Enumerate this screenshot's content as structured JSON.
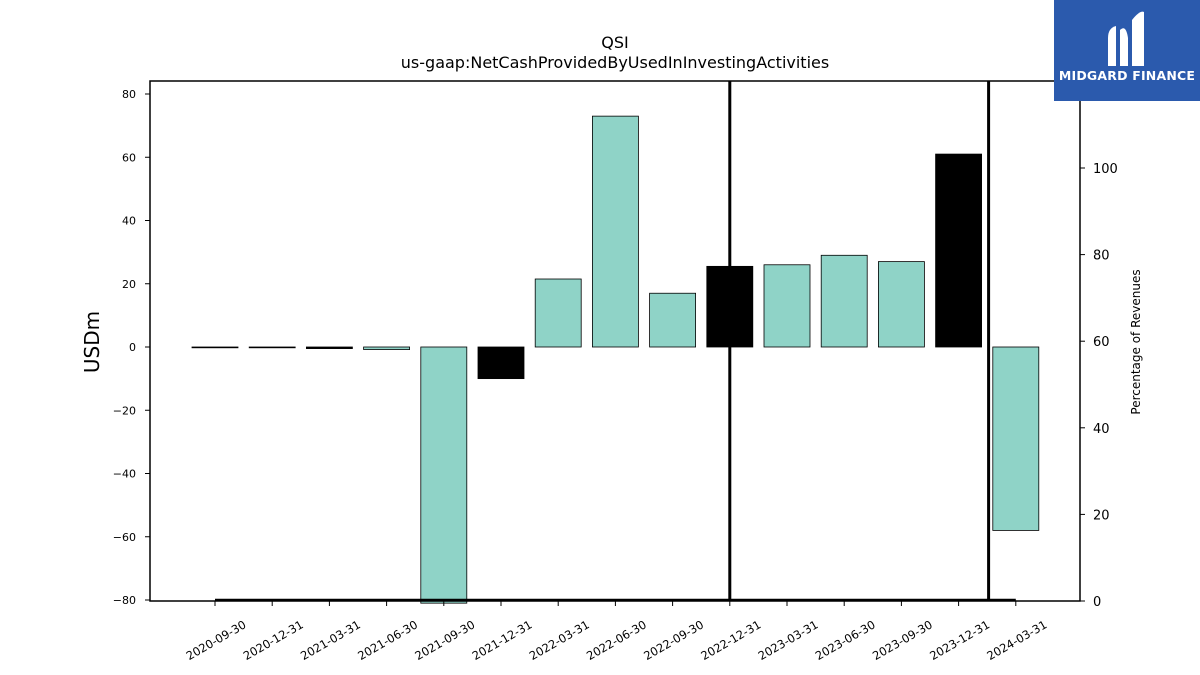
{
  "chart_data": {
    "type": "bar",
    "title": "QSI",
    "subtitle": "us-gaap:NetCashProvidedByUsedInInvestingActivities",
    "ylabel": "USDm",
    "y2label": "Percentage of Revenues",
    "categories": [
      "2020-09-30",
      "2020-12-31",
      "2021-03-31",
      "2021-06-30",
      "2021-09-30",
      "2021-12-31",
      "2022-03-31",
      "2022-06-30",
      "2022-09-30",
      "2022-12-31",
      "2023-03-31",
      "2023-06-30",
      "2023-09-30",
      "2023-12-31",
      "2024-03-31"
    ],
    "values": [
      -0.1,
      -0.2,
      -0.5,
      -0.8,
      -81,
      -10,
      21.5,
      73,
      17,
      25.5,
      26,
      29,
      27,
      61,
      -58
    ],
    "highlight": [
      false,
      false,
      true,
      false,
      false,
      true,
      false,
      false,
      false,
      true,
      false,
      false,
      false,
      true,
      false
    ],
    "ylim": [
      -81,
      85
    ],
    "yticks": [
      -80,
      -60,
      -40,
      -20,
      0,
      20,
      40,
      60,
      80
    ],
    "y2lim": [
      0,
      120
    ],
    "y2ticks": [
      0,
      20,
      40,
      60,
      80,
      100
    ],
    "percent_line": [
      0,
      0,
      0,
      0,
      0,
      0,
      0,
      0,
      0,
      0,
      0,
      0,
      0,
      0,
      0
    ],
    "vertical_markers": [
      "2022-12-31",
      "2023-12-31"
    ],
    "grid": false,
    "colors": {
      "bar": "#8fd3c7",
      "highlight": "#000000",
      "line": "#000000"
    }
  },
  "logo": {
    "text": "MIDGARD FINANCE",
    "color": "#2b5aad"
  }
}
